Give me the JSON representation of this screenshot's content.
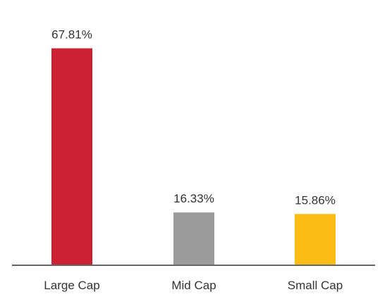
{
  "chart_data": {
    "type": "bar",
    "categories": [
      "Large Cap",
      "Mid Cap",
      "Small Cap"
    ],
    "values": [
      67.81,
      16.33,
      15.86
    ],
    "data_labels": [
      "67.81%",
      "16.33%",
      "15.86%"
    ],
    "colors": [
      "#cc2033",
      "#9b9b9b",
      "#fbbd14"
    ],
    "ylim": [
      0,
      100
    ],
    "grid": false,
    "axis_color": "#666666"
  }
}
